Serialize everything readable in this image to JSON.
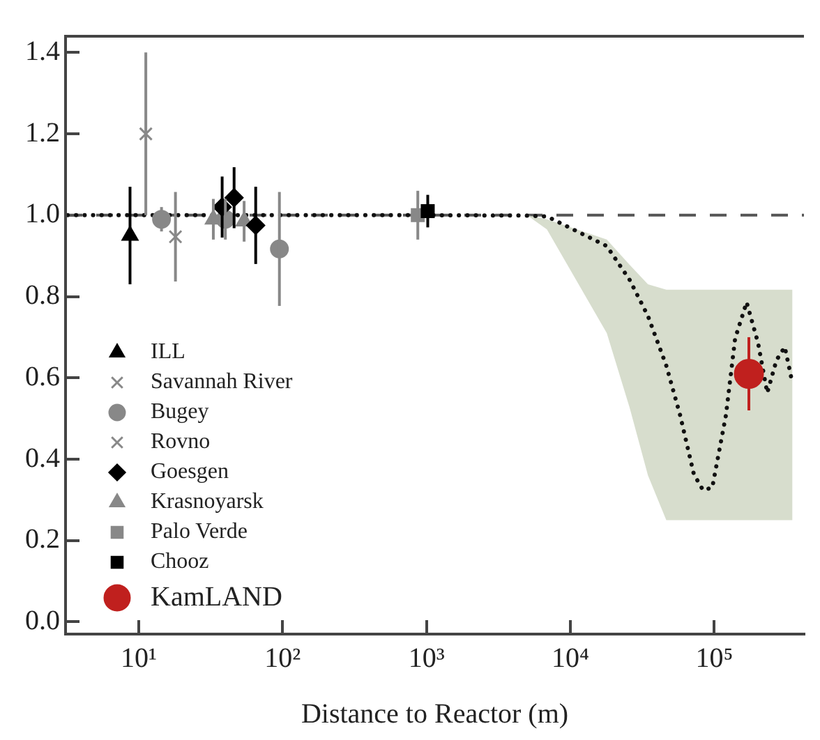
{
  "chart_data": {
    "type": "scatter",
    "xlabel": "Distance to Reactor (m)",
    "log": "x",
    "xlim": [
      3.1,
      420000
    ],
    "xticks": [
      {
        "value": 10,
        "label": "10¹"
      },
      {
        "value": 100,
        "label": "10²"
      },
      {
        "value": 1000,
        "label": "10³"
      },
      {
        "value": 10000,
        "label": "10⁴"
      },
      {
        "value": 100000,
        "label": "10⁵"
      }
    ],
    "ylim": [
      -0.03,
      1.44
    ],
    "yticks": [
      {
        "value": 0,
        "label": "0.0"
      },
      0.2,
      0.4,
      0.6,
      0.8,
      {
        "value": 1,
        "label": "1.0"
      },
      1.2,
      1.4
    ],
    "grid": false,
    "legend": "bottom left",
    "ref_lines": [
      {
        "axis": "y",
        "value": 1,
        "color": "#555555",
        "line_style": "dashed"
      }
    ],
    "series": [
      {
        "name": "ILL",
        "color": "#000000",
        "marker": "triangle",
        "x": [
          8.7
        ],
        "values": [
          0.95
        ],
        "errors": [
          0.12
        ]
      },
      {
        "name": "Savannah River",
        "color": "#888888",
        "marker": "cross",
        "x": [
          11.2
        ],
        "values": [
          1.2
        ],
        "errors": [
          0.2
        ]
      },
      {
        "name": "Bugey",
        "color": "#888888",
        "marker": "circle",
        "x": [
          14.4,
          40,
          95
        ],
        "values": [
          0.99,
          0.99,
          0.917
        ],
        "errors": [
          0.03,
          0.05,
          0.14
        ]
      },
      {
        "name": "Rovno",
        "color": "#888888",
        "marker": "cross",
        "x": [
          18
        ],
        "values": [
          0.947
        ],
        "errors": [
          0.11
        ]
      },
      {
        "name": "Goesgen",
        "color": "#000000",
        "marker": "diamond",
        "x": [
          38,
          46,
          65
        ],
        "values": [
          1.02,
          1.043,
          0.975
        ],
        "errors": [
          0.075,
          0.075,
          0.095
        ]
      },
      {
        "name": "Krasnoyarsk",
        "color": "#888888",
        "marker": "triangle",
        "x": [
          33,
          54
        ],
        "values": [
          0.99,
          0.985
        ],
        "errors": [
          0.05,
          0.05
        ]
      },
      {
        "name": "Palo Verde",
        "color": "#888888",
        "marker": "square",
        "x": [
          870
        ],
        "values": [
          1.0
        ],
        "errors": [
          0.06
        ]
      },
      {
        "name": "Chooz",
        "color": "#000000",
        "marker": "square",
        "x": [
          1020
        ],
        "values": [
          1.01
        ],
        "errors": [
          0.04
        ]
      },
      {
        "name": "KamLAND",
        "color": "#c0201e",
        "marker": "circle",
        "x": [
          174000
        ],
        "values": [
          0.61
        ],
        "errors": [
          0.09
        ]
      },
      {
        "type": "line",
        "color": "#111111",
        "line_style": "dotted",
        "marker": "none",
        "x": [
          3.2,
          1000,
          5000,
          6870,
          17900,
          25800,
          34600,
          46400,
          57900,
          72100,
          83500,
          96800,
          120500,
          139600,
          167800,
          201400,
          233400,
          270800,
          309000,
          349600
        ],
        "values": [
          1.0,
          1.0,
          0.999,
          0.997,
          0.924,
          0.841,
          0.752,
          0.63,
          0.508,
          0.363,
          0.324,
          0.33,
          0.508,
          0.697,
          0.786,
          0.686,
          0.563,
          0.644,
          0.676,
          0.586
        ],
        "lower": [
          null,
          null,
          1.0,
          0.965,
          0.71,
          0.527,
          0.36,
          0.25,
          0.25,
          0.25,
          0.25,
          0.25,
          0.25,
          0.25,
          0.25,
          0.25,
          0.25,
          0.25,
          0.25,
          0.25
        ],
        "upper": [
          null,
          null,
          1.0,
          0.99,
          0.94,
          0.878,
          0.83,
          0.817,
          0.817,
          0.817,
          0.817,
          0.817,
          0.817,
          0.817,
          0.817,
          0.817,
          0.817,
          0.817,
          0.817,
          0.817
        ]
      }
    ]
  }
}
